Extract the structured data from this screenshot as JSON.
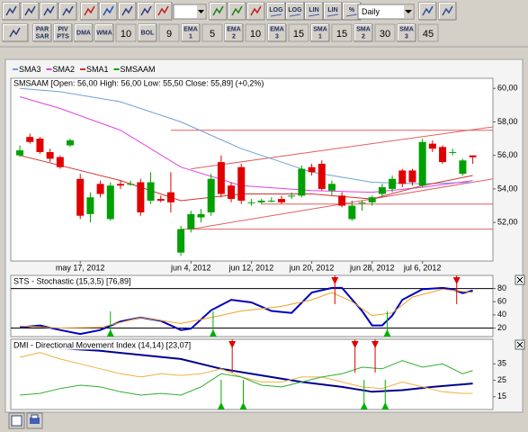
{
  "toolbar": {
    "row1": [
      "LOG",
      "LOG",
      "LIN",
      "LIN",
      "%"
    ],
    "period": "Daily",
    "row2": [
      [
        "PAR",
        "SAR"
      ],
      [
        "PIV",
        "PTS"
      ],
      [
        "DMA"
      ],
      [
        "WMA"
      ],
      10,
      [
        "BOL"
      ],
      9,
      [
        "EMA",
        "1"
      ],
      5,
      [
        "EMA",
        "2"
      ],
      10,
      [
        "EMA",
        "3"
      ],
      15,
      [
        "SMA",
        "1"
      ],
      15,
      [
        "SMA",
        "2"
      ],
      30,
      [
        "SMA",
        "3"
      ],
      45
    ]
  },
  "chart_data": [
    {
      "type": "candlestick",
      "info": "SMSAAM [Open: 56,00  High: 56,00  Low: 55,50  Close: 55,89] (+0,2%)",
      "candles": {
        "name": "SMSAAM",
        "color": "#00a000",
        "down_color": "#e00000",
        "x": [
          0,
          1,
          2,
          3,
          4,
          5,
          6,
          7,
          8,
          9,
          10,
          11,
          12,
          13,
          14,
          15,
          16,
          17,
          18,
          19,
          20,
          21,
          22,
          23,
          24,
          25,
          26,
          27,
          28,
          29,
          30,
          31,
          32,
          33,
          34,
          35,
          36,
          37,
          38,
          39,
          40,
          41,
          42,
          43,
          44,
          45
        ],
        "open": [
          56.0,
          57.1,
          57.0,
          56.2,
          55.9,
          56.6,
          54.6,
          52.5,
          54.3,
          52.2,
          54.3,
          54.3,
          54.4,
          53.3,
          53.4,
          53.8,
          50.2,
          51.6,
          52.3,
          52.6,
          55.6,
          54.2,
          55.3,
          53.2,
          53.2,
          53.3,
          53.4,
          53.6,
          53.6,
          55.3,
          55.5,
          53.9,
          53.6,
          52.2,
          53.2,
          53.2,
          53.7,
          54.0,
          55.1,
          55.1,
          54.2,
          56.7,
          56.5,
          56.2,
          54.9,
          56.0
        ],
        "high": [
          56.6,
          57.3,
          57.1,
          56.4,
          56.0,
          57.0,
          54.9,
          53.8,
          54.5,
          54.4,
          54.5,
          54.5,
          54.6,
          55.0,
          53.6,
          55.0,
          51.8,
          52.7,
          52.8,
          54.9,
          56.0,
          54.4,
          55.5,
          53.4,
          53.4,
          53.5,
          53.6,
          53.8,
          55.4,
          55.5,
          55.7,
          54.5,
          53.8,
          53.3,
          53.3,
          53.6,
          54.3,
          54.8,
          55.2,
          55.2,
          57.0,
          56.9,
          56.6,
          56.4,
          55.8,
          56.0
        ],
        "low": [
          55.9,
          56.7,
          56.1,
          55.6,
          55.2,
          56.5,
          52.2,
          52.0,
          53.5,
          52.1,
          54.0,
          54.2,
          52.4,
          53.1,
          53.2,
          52.6,
          50.0,
          51.4,
          52.0,
          52.4,
          53.5,
          53.2,
          53.1,
          53.0,
          53.1,
          53.2,
          53.1,
          53.4,
          53.5,
          54.8,
          53.9,
          53.6,
          52.9,
          52.1,
          52.7,
          53.0,
          53.5,
          53.8,
          54.1,
          54.2,
          54.1,
          56.2,
          55.5,
          56.0,
          54.8,
          55.5
        ],
        "close": [
          56.3,
          56.8,
          56.2,
          55.8,
          55.3,
          56.9,
          52.4,
          53.5,
          53.7,
          54.2,
          54.2,
          54.3,
          52.6,
          54.4,
          53.3,
          53.2,
          51.6,
          52.5,
          52.5,
          54.6,
          53.7,
          53.4,
          53.3,
          53.2,
          53.3,
          53.3,
          53.2,
          53.6,
          55.2,
          55.0,
          54.0,
          54.3,
          53.0,
          53.0,
          53.2,
          53.5,
          54.1,
          54.6,
          54.3,
          54.4,
          56.8,
          56.4,
          55.6,
          56.2,
          55.7,
          55.89
        ]
      },
      "series": [
        {
          "name": "SMA3",
          "color": "#6f9fd8",
          "x": [
            0,
            4,
            10,
            16,
            22,
            29,
            35,
            40,
            45
          ],
          "values": [
            60.0,
            59.8,
            59.2,
            58.0,
            56.4,
            55.0,
            54.4,
            54.3,
            54.4
          ]
        },
        {
          "name": "SMA2",
          "color": "#e040e0",
          "x": [
            0,
            4,
            10,
            16,
            22,
            29,
            35,
            40,
            45
          ],
          "values": [
            59.5,
            58.8,
            57.5,
            55.3,
            54.2,
            53.9,
            53.8,
            54.1,
            54.5
          ]
        },
        {
          "name": "SMA1",
          "color": "#d03030",
          "x": [
            0,
            4,
            10,
            16,
            22,
            29,
            35,
            40,
            45
          ],
          "values": [
            56.0,
            55.4,
            54.5,
            53.3,
            53.7,
            53.7,
            53.4,
            54.2,
            54.8
          ]
        }
      ],
      "trendlines": [
        {
          "x": [
            15,
            47
          ],
          "values": [
            57.5,
            57.5
          ]
        },
        {
          "x": [
            17,
            47
          ],
          "values": [
            55.2,
            57.7
          ]
        },
        {
          "x": [
            17,
            47
          ],
          "values": [
            51.6,
            54.6
          ]
        },
        {
          "x": [
            24,
            47
          ],
          "values": [
            53.1,
            53.1
          ]
        },
        {
          "x": [
            16,
            47
          ],
          "values": [
            51.6,
            51.6
          ]
        }
      ],
      "trendline_color": "#e06060",
      "xlim": [
        -0.9,
        47
      ],
      "xticks": [
        {
          "value": 6,
          "label": "may 17, 2012"
        },
        {
          "value": 17,
          "label": "jun 4, 2012"
        },
        {
          "value": 23,
          "label": "jun 12, 2012"
        },
        {
          "value": 29,
          "label": "jun 20, 2012"
        },
        {
          "value": 35,
          "label": "jun 28, 2012"
        },
        {
          "value": 40,
          "label": "jul 6, 2012"
        }
      ],
      "ylim": [
        49.7,
        60.6
      ],
      "yticks": [
        {
          "value": 52,
          "label": "52,00"
        },
        {
          "value": 54,
          "label": "54,00"
        },
        {
          "value": 56,
          "label": "56,00"
        },
        {
          "value": 58,
          "label": "58,00"
        },
        {
          "value": 60,
          "label": "60,00"
        }
      ]
    },
    {
      "type": "line",
      "title": "STS - Stochastic (15,3,5) [76,89]",
      "series": [
        {
          "color": "#0000c0",
          "width": 2,
          "x": [
            0,
            2,
            4,
            6,
            8,
            10,
            12,
            14,
            16,
            17,
            19,
            21,
            23,
            25,
            27,
            29,
            31,
            32,
            34,
            35,
            36,
            37,
            38,
            40,
            42,
            43,
            44,
            45
          ],
          "values": [
            21,
            24,
            17,
            11,
            17,
            30,
            36,
            31,
            17,
            19,
            47,
            63,
            59,
            46,
            43,
            74,
            81,
            81,
            46,
            24,
            24,
            39,
            63,
            79,
            81,
            79,
            73,
            76.89
          ]
        },
        {
          "color": "#f0a020",
          "width": 1,
          "x": [
            0,
            4,
            8,
            12,
            16,
            19,
            22,
            26,
            29,
            31,
            33,
            35,
            37,
            39,
            42,
            45
          ],
          "values": [
            23,
            20,
            21,
            36,
            27,
            36,
            46,
            53,
            63,
            74,
            60,
            39,
            43,
            67,
            79,
            74
          ]
        }
      ],
      "levels": [
        80,
        20
      ],
      "buy_signals": [
        9,
        19.2,
        36.5
      ],
      "sell_signals": [
        31.3,
        43.4
      ],
      "buy_color": "#00b000",
      "sell_color": "#e00000",
      "xlim": [
        -0.9,
        47
      ],
      "ylim": [
        7,
        100
      ],
      "yticks": [
        20,
        40,
        60,
        80
      ]
    },
    {
      "type": "line",
      "title": "DMI - Directional Movement Index (14,14) [23,07]",
      "series": [
        {
          "color": "#000090",
          "width": 2,
          "x": [
            0,
            8,
            16,
            20,
            24,
            28,
            32,
            35,
            38,
            41,
            45
          ],
          "values": [
            46,
            43,
            38,
            32,
            28,
            24,
            21,
            18,
            19,
            21,
            23.07
          ]
        },
        {
          "color": "#f0b040",
          "width": 1,
          "x": [
            0,
            2,
            4,
            6,
            8,
            10,
            12,
            14,
            16,
            18,
            20,
            22,
            24,
            26,
            28,
            30,
            32,
            34,
            36,
            38,
            40,
            42,
            44,
            45
          ],
          "values": [
            39,
            42,
            38,
            35,
            32,
            29,
            27,
            29,
            28,
            29,
            32,
            27,
            24,
            24,
            27,
            27,
            24,
            21,
            20,
            24,
            21,
            18,
            17,
            17
          ]
        },
        {
          "color": "#30b030",
          "width": 1,
          "x": [
            0,
            2,
            4,
            6,
            8,
            10,
            12,
            14,
            16,
            18,
            20,
            22,
            24,
            26,
            28,
            30,
            32,
            34,
            36,
            38,
            40,
            42,
            44,
            45
          ],
          "values": [
            16,
            17,
            20,
            22,
            21,
            18,
            16,
            17,
            16,
            21,
            29,
            27,
            22,
            21,
            24,
            27,
            29,
            33,
            32,
            37,
            33,
            35,
            29,
            31
          ]
        }
      ],
      "buy_signals": [
        20,
        22.2,
        34.2,
        36.3
      ],
      "sell_signals": [
        21.1,
        33.3,
        35.3
      ],
      "buy_color": "#00b000",
      "sell_color": "#e00000",
      "xlim": [
        -0.9,
        47
      ],
      "ylim": [
        7.2,
        50
      ],
      "yticks": [
        15,
        25,
        35
      ]
    }
  ]
}
